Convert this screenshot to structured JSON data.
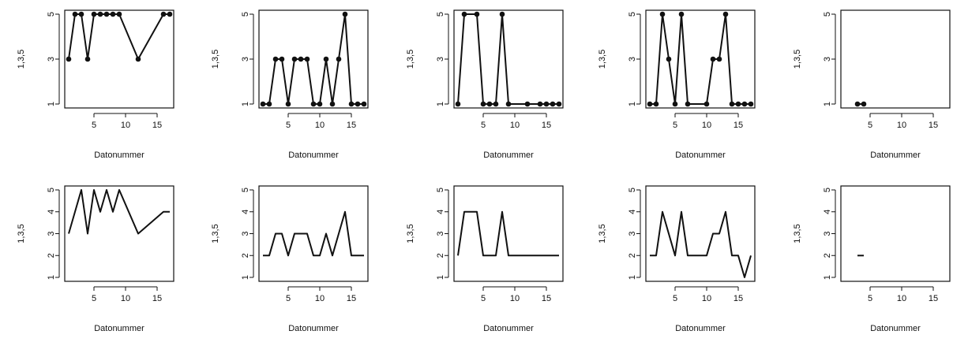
{
  "chart_data": [
    {
      "type": "line",
      "markers": true,
      "xlabel": "Datonummer",
      "ylabel": "1,3,5",
      "xlim": [
        1,
        17
      ],
      "ylim": [
        1,
        5
      ],
      "xticks": [
        5,
        10,
        15
      ],
      "yticks": [
        1,
        3,
        5
      ],
      "series": [
        {
          "x": [
            1,
            2,
            3,
            4,
            5,
            6,
            7,
            8,
            9,
            12,
            16,
            17
          ],
          "y": [
            3,
            5,
            5,
            3,
            5,
            5,
            5,
            5,
            5,
            3,
            5,
            5
          ]
        }
      ]
    },
    {
      "type": "line",
      "markers": true,
      "xlabel": "Datonummer",
      "ylabel": "1,3,5",
      "xlim": [
        1,
        17
      ],
      "ylim": [
        1,
        5
      ],
      "xticks": [
        5,
        10,
        15
      ],
      "yticks": [
        1,
        3,
        5
      ],
      "series": [
        {
          "x": [
            1,
            2,
            3,
            4,
            5,
            6,
            7,
            8,
            9,
            10,
            11,
            12,
            13,
            14,
            15,
            16,
            17
          ],
          "y": [
            1,
            1,
            3,
            3,
            1,
            3,
            3,
            3,
            1,
            1,
            3,
            1,
            3,
            5,
            1,
            1,
            1
          ]
        }
      ]
    },
    {
      "type": "line",
      "markers": true,
      "xlabel": "Datonummer",
      "ylabel": "1,3,5",
      "xlim": [
        1,
        17
      ],
      "ylim": [
        1,
        5
      ],
      "xticks": [
        5,
        10,
        15
      ],
      "yticks": [
        1,
        3,
        5
      ],
      "series": [
        {
          "x": [
            1,
            2,
            4,
            5,
            6,
            7,
            8,
            9,
            12,
            14,
            15,
            16,
            17
          ],
          "y": [
            1,
            5,
            5,
            1,
            1,
            1,
            5,
            1,
            1,
            1,
            1,
            1,
            1
          ]
        }
      ]
    },
    {
      "type": "line",
      "markers": true,
      "xlabel": "Datonummer",
      "ylabel": "1,3,5",
      "xlim": [
        1,
        17
      ],
      "ylim": [
        1,
        5
      ],
      "xticks": [
        5,
        10,
        15
      ],
      "yticks": [
        1,
        3,
        5
      ],
      "series": [
        {
          "x": [
            1,
            2,
            3,
            4,
            5,
            6,
            7,
            10,
            11,
            12,
            13,
            14,
            15,
            16,
            17
          ],
          "y": [
            1,
            1,
            5,
            3,
            1,
            5,
            1,
            1,
            3,
            3,
            5,
            1,
            1,
            1,
            1
          ]
        }
      ]
    },
    {
      "type": "line",
      "markers": true,
      "xlabel": "Datonummer",
      "ylabel": "1,3,5",
      "xlim": [
        1,
        17
      ],
      "ylim": [
        1,
        5
      ],
      "xticks": [
        5,
        10,
        15
      ],
      "yticks": [
        1,
        3,
        5
      ],
      "series": [
        {
          "x": [
            3,
            4
          ],
          "y": [
            1,
            1
          ]
        }
      ]
    },
    {
      "type": "line",
      "markers": false,
      "xlabel": "Datonummer",
      "ylabel": "1,3,5",
      "xlim": [
        1,
        17
      ],
      "ylim": [
        1,
        5
      ],
      "xticks": [
        5,
        10,
        15
      ],
      "yticks": [
        1,
        2,
        3,
        4,
        5
      ],
      "series": [
        {
          "x": [
            1,
            3,
            4,
            5,
            6,
            7,
            8,
            9,
            12,
            14,
            16,
            17
          ],
          "y": [
            3,
            5,
            3,
            5,
            4,
            5,
            4,
            5,
            3,
            3.5,
            4,
            4
          ]
        }
      ]
    },
    {
      "type": "line",
      "markers": false,
      "xlabel": "Datonummer",
      "ylabel": "1,3,5",
      "xlim": [
        1,
        17
      ],
      "ylim": [
        1,
        5
      ],
      "xticks": [
        5,
        10,
        15
      ],
      "yticks": [
        1,
        2,
        3,
        4,
        5
      ],
      "series": [
        {
          "x": [
            1,
            2,
            3,
            4,
            5,
            6,
            7,
            8,
            9,
            10,
            11,
            12,
            13,
            14,
            15,
            16,
            17
          ],
          "y": [
            2,
            2,
            3,
            3,
            2,
            3,
            3,
            3,
            2,
            2,
            3,
            2,
            3,
            4,
            2,
            2,
            2
          ]
        }
      ]
    },
    {
      "type": "line",
      "markers": false,
      "xlabel": "Datonummer",
      "ylabel": "1,3,5",
      "xlim": [
        1,
        17
      ],
      "ylim": [
        1,
        5
      ],
      "xticks": [
        5,
        10,
        15
      ],
      "yticks": [
        1,
        2,
        3,
        4,
        5
      ],
      "series": [
        {
          "x": [
            1,
            2,
            4,
            5,
            6,
            7,
            8,
            9,
            17
          ],
          "y": [
            2,
            4,
            4,
            2,
            2,
            2,
            4,
            2,
            2
          ]
        }
      ]
    },
    {
      "type": "line",
      "markers": false,
      "xlabel": "Datonummer",
      "ylabel": "1,3,5",
      "xlim": [
        1,
        17
      ],
      "ylim": [
        1,
        5
      ],
      "xticks": [
        5,
        10,
        15
      ],
      "yticks": [
        1,
        2,
        3,
        4,
        5
      ],
      "series": [
        {
          "x": [
            1,
            2,
            3,
            5,
            6,
            7,
            10,
            11,
            12,
            13,
            14,
            15,
            16,
            17
          ],
          "y": [
            2,
            2,
            4,
            2,
            4,
            2,
            2,
            3,
            3,
            4,
            2,
            2,
            1,
            2
          ]
        }
      ]
    },
    {
      "type": "line",
      "markers": false,
      "xlabel": "Datonummer",
      "ylabel": "1,3,5",
      "xlim": [
        1,
        17
      ],
      "ylim": [
        1,
        5
      ],
      "xticks": [
        5,
        10,
        15
      ],
      "yticks": [
        1,
        2,
        3,
        4,
        5
      ],
      "series": [
        {
          "x": [
            3,
            4
          ],
          "y": [
            2,
            2
          ]
        }
      ]
    }
  ]
}
